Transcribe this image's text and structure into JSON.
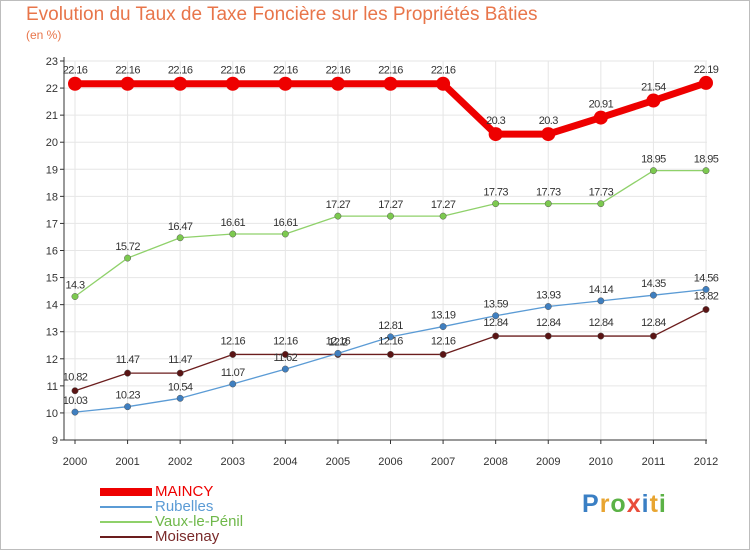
{
  "title": "Evolution du Taux de Taxe Foncière sur les Propriétés Bâties",
  "subtitle": "(en %)",
  "logo": "Proxiti",
  "chart_data": {
    "type": "line",
    "title": "Evolution du Taux de Taxe Foncière sur les Propriétés Bâties",
    "subtitle": "(en %)",
    "x": [
      "2000",
      "2001",
      "2002",
      "2003",
      "2004",
      "2005",
      "2006",
      "2007",
      "2008",
      "2009",
      "2010",
      "2011",
      "2012"
    ],
    "ylim": [
      9,
      23
    ],
    "y_ticks": [
      9,
      10,
      11,
      12,
      13,
      14,
      15,
      16,
      17,
      18,
      19,
      20,
      21,
      22,
      23
    ],
    "grid": true,
    "legend_position": "bottom-left",
    "series": [
      {
        "name": "MAINCY",
        "color": "#ee0000",
        "values": [
          22.16,
          22.16,
          22.16,
          22.16,
          22.16,
          22.16,
          22.16,
          22.16,
          20.3,
          20.3,
          20.91,
          21.54,
          22.19
        ]
      },
      {
        "name": "Rubelles",
        "color": "#5b9bd5",
        "values": [
          10.03,
          10.23,
          10.54,
          11.07,
          11.62,
          12.2,
          12.81,
          13.19,
          13.59,
          13.93,
          14.14,
          14.35,
          14.56
        ]
      },
      {
        "name": "Vaux-le-Pénil",
        "color": "#8fd16a",
        "values": [
          14.3,
          15.72,
          16.47,
          16.61,
          16.61,
          17.27,
          17.27,
          17.27,
          17.73,
          17.73,
          17.73,
          18.95,
          18.95
        ]
      },
      {
        "name": "Moisenay",
        "color": "#6b1d1d",
        "values": [
          10.82,
          11.47,
          11.47,
          12.16,
          12.16,
          12.16,
          12.16,
          12.16,
          12.84,
          12.84,
          12.84,
          12.84,
          13.82
        ]
      }
    ]
  }
}
